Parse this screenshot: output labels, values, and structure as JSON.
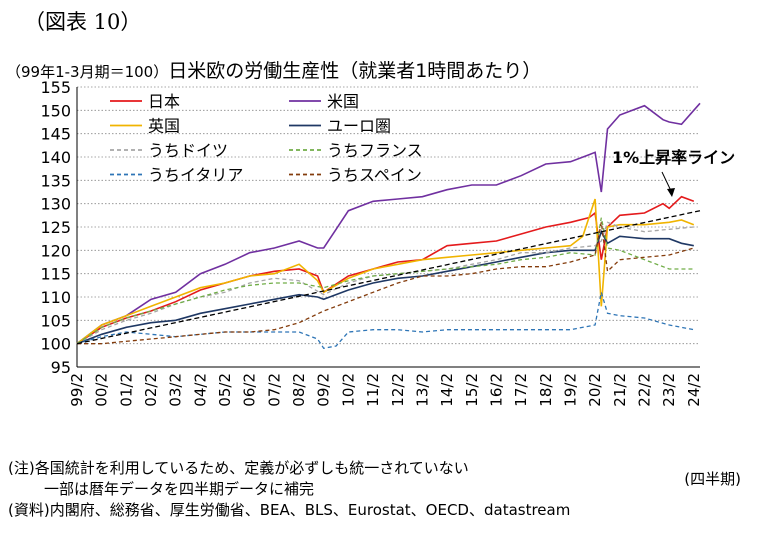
{
  "figure_label": "（図表 10）",
  "title_unit": "（99年1-3月期＝100）",
  "title": "日米欧の労働生産性（就業者1時間あたり）",
  "notes": {
    "note1": "(注)各国統計を利用しているため、定義が必ずしも統一されていない",
    "note2": "一部は暦年データを四半期データに補完",
    "source": "(資料)内閣府、総務省、厚生労働省、BEA、BLS、Eurostat、OECD、datastream",
    "x_unit": "(四半期)"
  },
  "chart_data": {
    "type": "line",
    "ylim": [
      95,
      155
    ],
    "yticks": [
      95,
      100,
      105,
      110,
      115,
      120,
      125,
      130,
      135,
      140,
      145,
      150,
      155
    ],
    "xticks": [
      "99/2",
      "00/2",
      "01/2",
      "02/2",
      "03/2",
      "04/2",
      "05/2",
      "06/2",
      "07/2",
      "08/2",
      "09/2",
      "10/2",
      "11/2",
      "12/2",
      "13/2",
      "14/2",
      "15/2",
      "16/2",
      "17/2",
      "18/2",
      "19/2",
      "20/2",
      "21/2",
      "22/2",
      "23/2",
      "24/2"
    ],
    "x_start": 1999.0,
    "x_end": 2024.25,
    "grid": "horizontal",
    "legend_position": "top-left",
    "annotation": "1%上昇率ライン",
    "series": [
      {
        "name": "日本",
        "color": "#e41a1c",
        "style": "solid",
        "x": [
          1999.0,
          2000.0,
          2001.0,
          2002.0,
          2003.0,
          2004.0,
          2005.0,
          2006.0,
          2007.0,
          2008.0,
          2008.75,
          2009.0,
          2010.0,
          2011.0,
          2012.0,
          2013.0,
          2014.0,
          2015.0,
          2016.0,
          2017.0,
          2018.0,
          2019.0,
          2019.75,
          2020.0,
          2020.25,
          2020.5,
          2021.0,
          2022.0,
          2022.75,
          2023.0,
          2023.5,
          2024.0
        ],
        "y": [
          100,
          103.5,
          105.5,
          107,
          109,
          111.5,
          113,
          114.5,
          115.5,
          116,
          114.5,
          111,
          114.5,
          116,
          117.5,
          118,
          121,
          121.5,
          122,
          123.5,
          125,
          126,
          127,
          128,
          118,
          125,
          127.5,
          128,
          130,
          129,
          131.5,
          130.5
        ]
      },
      {
        "name": "米国",
        "color": "#7030a0",
        "style": "solid",
        "x": [
          1999.0,
          2000.0,
          2001.0,
          2002.0,
          2003.0,
          2004.0,
          2005.0,
          2006.0,
          2007.0,
          2008.0,
          2008.75,
          2009.0,
          2009.5,
          2010.0,
          2011.0,
          2012.0,
          2013.0,
          2014.0,
          2015.0,
          2016.0,
          2017.0,
          2018.0,
          2019.0,
          2019.75,
          2020.0,
          2020.25,
          2020.5,
          2021.0,
          2022.0,
          2022.75,
          2023.0,
          2023.5,
          2024.0,
          2024.25
        ],
        "y": [
          100,
          104,
          106,
          109.5,
          111,
          115,
          117,
          119.5,
          120.5,
          122,
          120.5,
          120.5,
          124.5,
          128.5,
          130.5,
          131,
          131.5,
          133,
          134,
          134,
          136,
          138.5,
          139,
          140.5,
          141,
          132.5,
          146,
          149,
          151,
          148,
          147.5,
          147,
          150,
          151.5
        ]
      },
      {
        "name": "英国",
        "color": "#f0b400",
        "style": "solid",
        "x": [
          1999.0,
          2000.0,
          2001.0,
          2002.0,
          2003.0,
          2004.0,
          2005.0,
          2006.0,
          2007.0,
          2008.0,
          2008.75,
          2009.0,
          2010.0,
          2011.0,
          2012.0,
          2013.0,
          2014.0,
          2015.0,
          2016.0,
          2017.0,
          2018.0,
          2019.0,
          2019.5,
          2020.0,
          2020.25,
          2020.5,
          2021.0,
          2022.0,
          2023.0,
          2023.5,
          2024.0
        ],
        "y": [
          100,
          104,
          106,
          108,
          110,
          112,
          113,
          114.5,
          115,
          117,
          113.5,
          111,
          114,
          116,
          117,
          118,
          118.5,
          119,
          119.5,
          120,
          120.5,
          121,
          123,
          131,
          108,
          125,
          125.5,
          125.5,
          126,
          126.5,
          125.5
        ]
      },
      {
        "name": "ユーロ圏",
        "color": "#1f3864",
        "style": "solid",
        "x": [
          1999.0,
          2000.0,
          2001.0,
          2002.0,
          2003.0,
          2004.0,
          2005.0,
          2006.0,
          2007.0,
          2008.0,
          2008.75,
          2009.0,
          2010.0,
          2011.0,
          2012.0,
          2013.0,
          2014.0,
          2015.0,
          2016.0,
          2017.0,
          2018.0,
          2019.0,
          2020.0,
          2020.25,
          2020.5,
          2021.0,
          2022.0,
          2023.0,
          2023.5,
          2024.0
        ],
        "y": [
          100,
          102,
          103.5,
          104.5,
          105,
          106.5,
          107.5,
          108.5,
          109.5,
          110.5,
          110,
          109.5,
          111.5,
          113,
          114,
          114.5,
          115.5,
          116.5,
          117.5,
          118.5,
          119.5,
          120,
          120,
          124,
          121.5,
          123,
          122.5,
          122.5,
          121.5,
          121
        ]
      },
      {
        "name": "うちドイツ",
        "color": "#a6a6a6",
        "style": "dash",
        "x": [
          1999.0,
          2000.0,
          2001.0,
          2002.0,
          2003.0,
          2004.0,
          2005.0,
          2006.0,
          2007.0,
          2008.0,
          2009.0,
          2010.0,
          2011.0,
          2012.0,
          2013.0,
          2014.0,
          2015.0,
          2016.0,
          2017.0,
          2018.0,
          2019.0,
          2020.0,
          2020.25,
          2020.5,
          2021.0,
          2022.0,
          2023.0,
          2024.0
        ],
        "y": [
          100,
          103,
          105,
          106.5,
          108.5,
          110,
          111,
          113,
          114,
          113.5,
          110.5,
          113,
          114.5,
          115,
          115.5,
          116,
          117,
          118,
          119.5,
          119.5,
          120.5,
          121,
          122,
          126,
          125,
          124,
          124.5,
          125
        ]
      },
      {
        "name": "うちフランス",
        "color": "#70ad47",
        "style": "dash",
        "x": [
          1999.0,
          2000.0,
          2001.0,
          2002.0,
          2003.0,
          2004.0,
          2005.0,
          2006.0,
          2007.0,
          2008.0,
          2009.0,
          2010.0,
          2011.0,
          2012.0,
          2013.0,
          2014.0,
          2015.0,
          2016.0,
          2017.0,
          2018.0,
          2019.0,
          2020.0,
          2020.25,
          2020.5,
          2021.0,
          2022.0,
          2023.0,
          2024.0
        ],
        "y": [
          100,
          103.5,
          105.5,
          107,
          108.5,
          110,
          111.5,
          112.5,
          113,
          113,
          112,
          113.5,
          114.5,
          115,
          115.5,
          116,
          116.5,
          117,
          118,
          118.5,
          119.5,
          119,
          127,
          120.5,
          120,
          118,
          116,
          116
        ]
      },
      {
        "name": "うちイタリア",
        "color": "#2e75b6",
        "style": "dash",
        "x": [
          1999.0,
          2000.0,
          2001.0,
          2002.0,
          2003.0,
          2004.0,
          2005.0,
          2006.0,
          2007.0,
          2008.0,
          2008.75,
          2009.0,
          2009.5,
          2010.0,
          2011.0,
          2012.0,
          2013.0,
          2014.0,
          2015.0,
          2016.0,
          2017.0,
          2018.0,
          2019.0,
          2020.0,
          2020.25,
          2020.5,
          2021.0,
          2022.0,
          2023.0,
          2024.0
        ],
        "y": [
          100,
          101.5,
          102.5,
          102,
          101.5,
          102,
          102.5,
          102.5,
          102.5,
          102.5,
          101,
          99,
          99.5,
          102.5,
          103,
          103,
          102.5,
          103,
          103,
          103,
          103,
          103,
          103,
          104,
          111,
          106.5,
          106,
          105.5,
          104,
          103
        ]
      },
      {
        "name": "うちスペイン",
        "color": "#843c0c",
        "style": "dash",
        "x": [
          1999.0,
          2000.0,
          2001.0,
          2002.0,
          2003.0,
          2004.0,
          2005.0,
          2006.0,
          2007.0,
          2008.0,
          2009.0,
          2010.0,
          2011.0,
          2012.0,
          2013.0,
          2014.0,
          2015.0,
          2016.0,
          2017.0,
          2018.0,
          2019.0,
          2020.0,
          2020.25,
          2020.5,
          2021.0,
          2022.0,
          2023.0,
          2024.0
        ],
        "y": [
          100,
          100,
          100.5,
          101,
          101.5,
          102,
          102.5,
          102.5,
          103,
          104.5,
          107,
          109,
          111,
          113,
          114.5,
          114.5,
          115,
          116,
          116.5,
          116.5,
          117.5,
          119,
          126,
          115.5,
          118,
          118.5,
          119,
          120.5
        ]
      },
      {
        "name": "1%上昇率ライン",
        "color": "#000000",
        "style": "dash",
        "legend": false,
        "x": [
          1999.0,
          2024.25
        ],
        "y": [
          100,
          128.5
        ]
      }
    ]
  }
}
